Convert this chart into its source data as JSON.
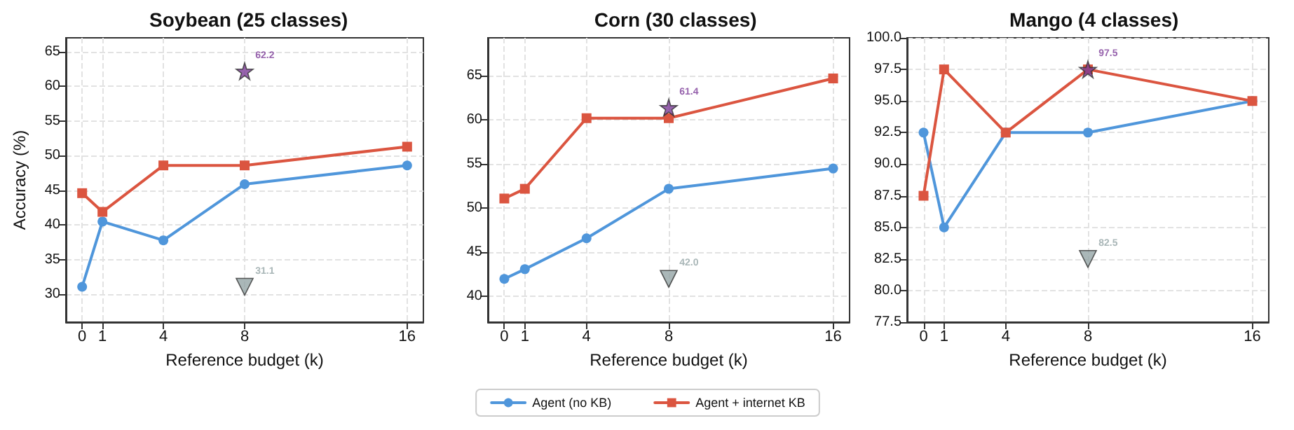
{
  "chart_data": [
    {
      "type": "line",
      "title": "Soybean (25 classes)",
      "xlabel": "Reference budget (k)",
      "ylabel": "Accuracy (%)",
      "xlim": [
        -0.8,
        16.8
      ],
      "xticks": [
        0,
        1,
        4,
        8,
        16
      ],
      "ylim": [
        26,
        67
      ],
      "yticks": [
        30,
        35,
        40,
        45,
        50,
        55,
        60,
        65
      ],
      "grid": true,
      "series": [
        {
          "color": "#4f96db",
          "marker": "circle",
          "x": [
            0,
            1,
            4,
            8,
            16
          ],
          "values": [
            31.1,
            40.5,
            37.8,
            45.9,
            48.6
          ]
        },
        {
          "color": "#db5540",
          "marker": "square",
          "x": [
            0,
            1,
            4,
            8,
            16
          ],
          "values": [
            44.6,
            41.9,
            48.6,
            48.6,
            51.3
          ]
        },
        {
          "type": "scatter",
          "color": "#95a5a6",
          "marker": "triangle",
          "x": [
            8
          ],
          "values": [
            31.1
          ],
          "value_labels": [
            "31.1"
          ]
        },
        {
          "type": "scatter",
          "color": "#7d3c98",
          "marker": "star",
          "x": [
            8
          ],
          "values": [
            62.2
          ],
          "value_labels": [
            "62.2"
          ]
        }
      ]
    },
    {
      "type": "line",
      "title": "Corn (30 classes)",
      "xlabel": "Reference budget (k)",
      "xlim": [
        -0.8,
        16.8
      ],
      "xticks": [
        0,
        1,
        4,
        8,
        16
      ],
      "ylim": [
        37.1,
        69.3
      ],
      "yticks": [
        40,
        45,
        50,
        55,
        60,
        65
      ],
      "grid": true,
      "legend": "bottom",
      "series": [
        {
          "name": "Agent (no KB)",
          "color": "#4f96db",
          "marker": "circle",
          "x": [
            0,
            1,
            4,
            8,
            16
          ],
          "values": [
            42.0,
            43.1,
            46.6,
            52.2,
            54.5
          ]
        },
        {
          "name": "Agent + internet KB",
          "color": "#db5540",
          "marker": "square",
          "x": [
            0,
            1,
            4,
            8,
            16
          ],
          "values": [
            51.1,
            52.2,
            60.2,
            60.2,
            64.7
          ]
        },
        {
          "type": "scatter",
          "color": "#95a5a6",
          "marker": "triangle",
          "x": [
            8
          ],
          "values": [
            42.0
          ],
          "value_labels": [
            "42.0"
          ]
        },
        {
          "type": "scatter",
          "color": "#7d3c98",
          "marker": "star",
          "x": [
            8
          ],
          "values": [
            61.4
          ],
          "value_labels": [
            "61.4"
          ]
        }
      ]
    },
    {
      "type": "line",
      "title": "Mango (4 classes)",
      "xlabel": "Reference budget (k)",
      "xlim": [
        -0.8,
        16.8
      ],
      "xticks": [
        0,
        1,
        4,
        8,
        16
      ],
      "ylim": [
        77.5,
        100
      ],
      "yticks": [
        {
          "value": 77.5,
          "label": "77.5"
        },
        {
          "value": 80,
          "label": "80.0"
        },
        {
          "value": 82.5,
          "label": "82.5"
        },
        {
          "value": 85,
          "label": "85.0"
        },
        {
          "value": 87.5,
          "label": "87.5"
        },
        {
          "value": 90,
          "label": "90.0"
        },
        {
          "value": 92.5,
          "label": "92.5"
        },
        {
          "value": 95,
          "label": "95.0"
        },
        {
          "value": 97.5,
          "label": "97.5"
        },
        {
          "value": 100,
          "label": "100.0"
        }
      ],
      "grid": true,
      "series": [
        {
          "color": "#4f96db",
          "marker": "circle",
          "x": [
            0,
            1,
            4,
            8,
            16
          ],
          "values": [
            92.5,
            85,
            92.5,
            92.5,
            95
          ]
        },
        {
          "color": "#db5540",
          "marker": "square",
          "x": [
            0,
            1,
            4,
            8,
            16
          ],
          "values": [
            87.5,
            97.5,
            92.5,
            97.5,
            95
          ]
        },
        {
          "type": "scatter",
          "color": "#95a5a6",
          "marker": "triangle",
          "x": [
            8
          ],
          "values": [
            82.5
          ],
          "value_labels": [
            "82.5"
          ]
        },
        {
          "type": "scatter",
          "color": "#7d3c98",
          "marker": "star",
          "x": [
            8
          ],
          "values": [
            97.5
          ],
          "value_labels": [
            "97.5"
          ]
        }
      ]
    }
  ]
}
